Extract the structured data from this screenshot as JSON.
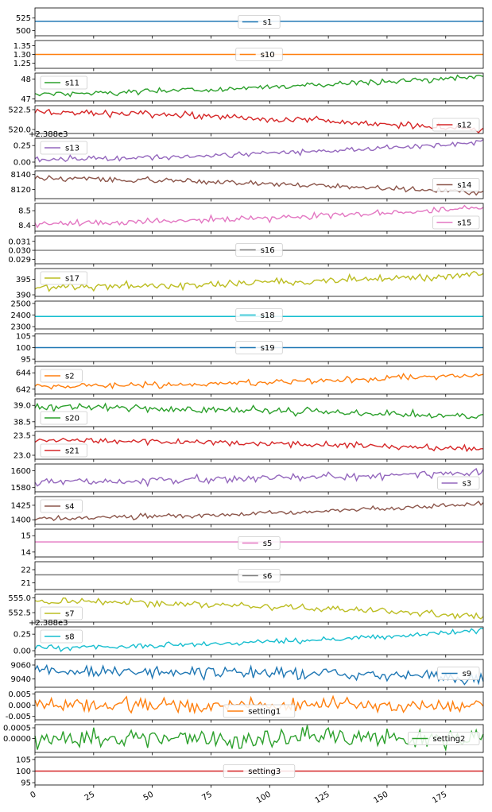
{
  "chart_data": {
    "type": "line",
    "x_range": [
      0,
      191
    ],
    "x_ticks": [
      0,
      25,
      50,
      75,
      100,
      125,
      150,
      175
    ],
    "n_points": 192,
    "panels": [
      {
        "name": "s1",
        "color": "#1f77b4",
        "yticks": [
          500,
          525
        ],
        "ytick_labels": [
          "500",
          "525"
        ],
        "ylim": [
          490,
          545
        ],
        "legend": "center",
        "offset_label": "",
        "start": 518.67,
        "end": 518.67,
        "noise": 0
      },
      {
        "name": "s10",
        "color": "#ff7f0e",
        "yticks": [
          1.25,
          1.3,
          1.35
        ],
        "ytick_labels": [
          "1.25",
          "1.30",
          "1.35"
        ],
        "ylim": [
          1.22,
          1.38
        ],
        "legend": "center",
        "offset_label": "",
        "start": 1.3,
        "end": 1.3,
        "noise": 0
      },
      {
        "name": "s11",
        "color": "#2ca02c",
        "yticks": [
          47,
          48
        ],
        "ytick_labels": [
          "47",
          "48"
        ],
        "ylim": [
          46.9,
          48.3
        ],
        "legend": "upper left",
        "offset_label": "",
        "start": 47.25,
        "end": 48.15,
        "noise": 0.1
      },
      {
        "name": "s12",
        "color": "#d62728",
        "yticks": [
          520.0,
          522.5
        ],
        "ytick_labels": [
          "520.0",
          "522.5"
        ],
        "ylim": [
          519.5,
          523.0
        ],
        "legend": "lower right",
        "offset_label": "",
        "start": 522.2,
        "end": 520.0,
        "noise": 0.3
      },
      {
        "name": "s13",
        "color": "#9467bd",
        "yticks": [
          0.0,
          0.25
        ],
        "ytick_labels": [
          "0.00",
          "0.25"
        ],
        "ylim": [
          -0.06,
          0.36
        ],
        "legend": "upper left",
        "offset_label": "+2.388e3",
        "start": 0.04,
        "end": 0.3,
        "noise": 0.03
      },
      {
        "name": "s14",
        "color": "#8c564b",
        "yticks": [
          8120,
          8140
        ],
        "ytick_labels": [
          "8120",
          "8140"
        ],
        "ylim": [
          8108,
          8145
        ],
        "legend": "center right",
        "offset_label": "",
        "start": 8135,
        "end": 8116,
        "noise": 2.5
      },
      {
        "name": "s15",
        "color": "#e377c2",
        "yticks": [
          8.4,
          8.5
        ],
        "ytick_labels": [
          "8.4",
          "8.5"
        ],
        "ylim": [
          8.36,
          8.55
        ],
        "legend": "lower right",
        "offset_label": "",
        "start": 8.41,
        "end": 8.52,
        "noise": 0.015
      },
      {
        "name": "s16",
        "color": "#7f7f7f",
        "yticks": [
          0.029,
          0.03,
          0.031
        ],
        "ytick_labels": [
          "0.029",
          "0.030",
          "0.031"
        ],
        "ylim": [
          0.0285,
          0.0316
        ],
        "legend": "center",
        "offset_label": "",
        "start": 0.03,
        "end": 0.03,
        "noise": 0
      },
      {
        "name": "s17",
        "color": "#bcbd22",
        "yticks": [
          390,
          395
        ],
        "ytick_labels": [
          "390",
          "395"
        ],
        "ylim": [
          389.5,
          398.5
        ],
        "legend": "upper left",
        "offset_label": "",
        "start": 392.5,
        "end": 396.5,
        "noise": 0.9
      },
      {
        "name": "s18",
        "color": "#17becf",
        "yticks": [
          2300,
          2400,
          2500
        ],
        "ytick_labels": [
          "2300",
          "2400",
          "2500"
        ],
        "ylim": [
          2280,
          2520
        ],
        "legend": "center",
        "offset_label": "",
        "start": 2388,
        "end": 2388,
        "noise": 0
      },
      {
        "name": "s19",
        "color": "#1f77b4",
        "yticks": [
          95,
          100,
          105
        ],
        "ytick_labels": [
          "95",
          "100",
          "105"
        ],
        "ylim": [
          94,
          106
        ],
        "legend": "center",
        "offset_label": "",
        "start": 100,
        "end": 100,
        "noise": 0
      },
      {
        "name": "s2",
        "color": "#ff7f0e",
        "yticks": [
          642,
          644
        ],
        "ytick_labels": [
          "642",
          "644"
        ],
        "ylim": [
          641.4,
          644.8
        ],
        "legend": "upper left",
        "offset_label": "",
        "start": 642.3,
        "end": 643.8,
        "noise": 0.25
      },
      {
        "name": "s20",
        "color": "#2ca02c",
        "yticks": [
          38.5,
          39.0
        ],
        "ytick_labels": [
          "38.5",
          "39.0"
        ],
        "ylim": [
          38.35,
          39.2
        ],
        "legend": "lower left",
        "offset_label": "",
        "start": 38.95,
        "end": 38.65,
        "noise": 0.08
      },
      {
        "name": "s21",
        "color": "#d62728",
        "yticks": [
          23.0,
          23.5
        ],
        "ytick_labels": [
          "23.0",
          "23.5"
        ],
        "ylim": [
          22.9,
          23.6
        ],
        "legend": "lower left",
        "offset_label": "",
        "start": 23.38,
        "end": 23.15,
        "noise": 0.05
      },
      {
        "name": "s3",
        "color": "#9467bd",
        "yticks": [
          1580,
          1600
        ],
        "ytick_labels": [
          "1580",
          "1600"
        ],
        "ylim": [
          1575,
          1608
        ],
        "legend": "lower right",
        "offset_label": "",
        "start": 1587,
        "end": 1598,
        "noise": 3.2
      },
      {
        "name": "s4",
        "color": "#8c564b",
        "yticks": [
          1400,
          1425
        ],
        "ytick_labels": [
          "1400",
          "1425"
        ],
        "ylim": [
          1392,
          1440
        ],
        "legend": "upper left",
        "offset_label": "",
        "start": 1402,
        "end": 1428,
        "noise": 3.0
      },
      {
        "name": "s5",
        "color": "#e377c2",
        "yticks": [
          14,
          15
        ],
        "ytick_labels": [
          "14",
          "15"
        ],
        "ylim": [
          13.7,
          15.4
        ],
        "legend": "center",
        "offset_label": "",
        "start": 14.62,
        "end": 14.62,
        "noise": 0
      },
      {
        "name": "s6",
        "color": "#7f7f7f",
        "yticks": [
          21,
          22
        ],
        "ytick_labels": [
          "21",
          "22"
        ],
        "ylim": [
          20.5,
          22.6
        ],
        "legend": "center",
        "offset_label": "",
        "start": 21.61,
        "end": 21.61,
        "noise": 0
      },
      {
        "name": "s7",
        "color": "#bcbd22",
        "yticks": [
          552.5,
          555.0
        ],
        "ytick_labels": [
          "552.5",
          "555.0"
        ],
        "ylim": [
          550.9,
          555.6
        ],
        "legend": "lower left",
        "offset_label": "",
        "start": 554.5,
        "end": 551.8,
        "noise": 0.4
      },
      {
        "name": "s8",
        "color": "#17becf",
        "yticks": [
          0.0,
          0.25
        ],
        "ytick_labels": [
          "0.00",
          "0.25"
        ],
        "ylim": [
          -0.06,
          0.36
        ],
        "legend": "upper left",
        "offset_label": "+2.388e3",
        "start": 0.04,
        "end": 0.3,
        "noise": 0.03
      },
      {
        "name": "s9",
        "color": "#1f77b4",
        "yticks": [
          9040,
          9060
        ],
        "ytick_labels": [
          "9040",
          "9060"
        ],
        "ylim": [
          9028,
          9068
        ],
        "legend": "center right",
        "offset_label": "",
        "start": 9052,
        "end": 9042,
        "noise": 5.5
      },
      {
        "name": "setting1",
        "color": "#ff7f0e",
        "yticks": [
          -0.005,
          0.0,
          0.005
        ],
        "ytick_labels": [
          "-0.005",
          "0.000",
          "0.005"
        ],
        "ylim": [
          -0.0065,
          0.0058
        ],
        "legend": "lower center",
        "offset_label": "",
        "start": 0,
        "end": 0,
        "noise": 0.0022
      },
      {
        "name": "setting2",
        "color": "#2ca02c",
        "yticks": [
          0.0,
          0.0005
        ],
        "ytick_labels": [
          "0.0000",
          "0.0005"
        ],
        "ylim": [
          -0.00065,
          0.00065
        ],
        "legend": "center right",
        "offset_label": "",
        "start": 0,
        "end": 0,
        "noise": 0.00033
      },
      {
        "name": "setting3",
        "color": "#d62728",
        "yticks": [
          95,
          100,
          105
        ],
        "ytick_labels": [
          "95",
          "100",
          "105"
        ],
        "ylim": [
          94,
          106
        ],
        "legend": "center",
        "offset_label": "",
        "start": 100,
        "end": 100,
        "noise": 0
      }
    ]
  }
}
